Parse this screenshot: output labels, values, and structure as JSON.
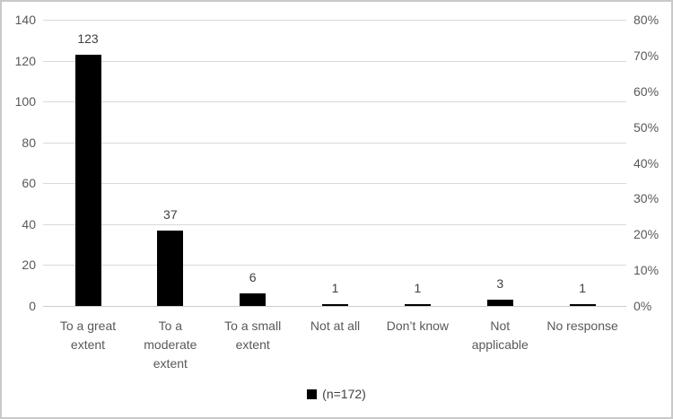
{
  "chart_data": {
    "type": "bar",
    "categories": [
      "To a great extent",
      "To a moderate extent",
      "To a small extent",
      "Not at all",
      "Don’t know",
      "Not applicable",
      "No response"
    ],
    "values": [
      123,
      37,
      6,
      1,
      1,
      3,
      1
    ],
    "data_labels": [
      "123",
      "37",
      "6",
      "1",
      "1",
      "3",
      "1"
    ],
    "series_name": "(n=172)",
    "legend": {
      "label": "(n=172)",
      "position": "bottom",
      "marker_color": "#000000"
    },
    "axis_left": {
      "min": 0,
      "max": 140,
      "step": 20,
      "tick_labels": [
        "0",
        "20",
        "40",
        "60",
        "80",
        "100",
        "120",
        "140"
      ]
    },
    "axis_right": {
      "min": 0,
      "max": 80,
      "step": 10,
      "tick_labels": [
        "0%",
        "10%",
        "20%",
        "30%",
        "40%",
        "50%",
        "60%",
        "70%",
        "80%"
      ]
    },
    "grid": true,
    "colors": {
      "bar": "#000000",
      "gridline": "#d9d9d9",
      "axis_line": "#cccccc",
      "axis_text": "#595959",
      "data_label_text": "#404040",
      "frame_border": "#c9c9c9",
      "background": "#ffffff"
    }
  }
}
